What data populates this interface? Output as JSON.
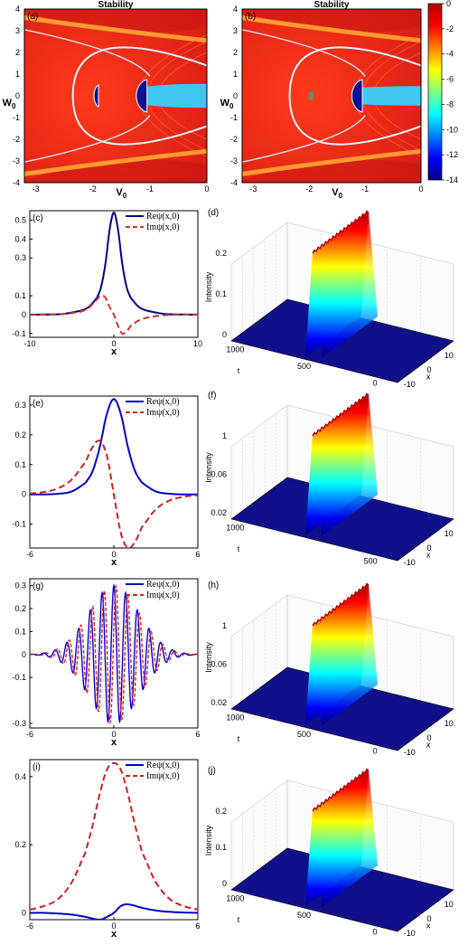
{
  "chart_data": [
    {
      "id": "a",
      "type": "heatmap",
      "panel_label": "(a)",
      "title": "Stability",
      "xlabel": "V0",
      "ylabel": "W0",
      "xlim": [
        -3.2,
        0
      ],
      "ylim": [
        -4,
        4
      ],
      "x_ticks": [
        "-3",
        "-2",
        "-1",
        "0"
      ],
      "y_ticks": [
        "4",
        "3",
        "2",
        "1",
        "0",
        "-1",
        "-2",
        "-3",
        "-4"
      ],
      "background_color": "#e0261c"
    },
    {
      "id": "b",
      "type": "heatmap",
      "panel_label": "(b)",
      "title": "Stability",
      "xlabel": "V0",
      "ylabel": "W0",
      "xlim": [
        -3.2,
        0
      ],
      "ylim": [
        -4,
        4
      ],
      "x_ticks": [
        "-3",
        "-2",
        "-1",
        "0"
      ],
      "y_ticks": [
        "4",
        "3",
        "2",
        "1",
        "0",
        "-1",
        "-2",
        "-3",
        "-4"
      ],
      "colorbar": {
        "range": [
          -14,
          0
        ],
        "ticks": [
          "0",
          "-2",
          "-4",
          "-6",
          "-8",
          "-10",
          "-12",
          "-14"
        ],
        "colors": [
          "#8b0000",
          "#ff2a00",
          "#ff8c00",
          "#ffff00",
          "#7fff7f",
          "#00ffff",
          "#0080ff",
          "#0000bf",
          "#00007f"
        ]
      },
      "background_color": "#e0261c"
    },
    {
      "id": "c",
      "type": "line",
      "panel_label": "(c)",
      "xlabel": "x",
      "xlim": [
        -10,
        10
      ],
      "ylim": [
        -0.12,
        0.55
      ],
      "x_ticks": [
        "-10",
        "0",
        "10"
      ],
      "y_ticks": [
        "0.5",
        "0.4",
        "0.3",
        "0.1",
        "0",
        "-0.1"
      ],
      "series": [
        {
          "name": "Reψ(x,0)",
          "color": "#00008b",
          "style": "solid",
          "x": [
            -10,
            -8,
            -6,
            -4,
            -3,
            -2,
            -1.5,
            -1,
            -0.5,
            0,
            0.5,
            1,
            1.5,
            2,
            3,
            4,
            6,
            8,
            10
          ],
          "values": [
            0,
            0.001,
            0.004,
            0.02,
            0.04,
            0.09,
            0.15,
            0.27,
            0.45,
            0.54,
            0.45,
            0.27,
            0.15,
            0.09,
            0.04,
            0.02,
            0.004,
            0.001,
            0
          ]
        },
        {
          "name": "Imψ(x,0)",
          "color": "#c0392b",
          "style": "dashed",
          "x": [
            -10,
            -8,
            -6,
            -4,
            -3,
            -2,
            -1.5,
            -1,
            -0.5,
            0,
            0.5,
            1,
            1.5,
            2,
            3,
            4,
            6,
            8,
            10
          ],
          "values": [
            0,
            0,
            0.003,
            0.015,
            0.035,
            0.08,
            0.1,
            0.09,
            0.04,
            0,
            -0.06,
            -0.1,
            -0.09,
            -0.06,
            -0.03,
            -0.015,
            -0.003,
            0,
            0
          ]
        }
      ]
    },
    {
      "id": "d",
      "type": "surface",
      "panel_label": "(d)",
      "xlabel": "x",
      "ylabel": "t",
      "zlabel": "Intensity",
      "x_ticks": [
        "-10",
        "0",
        "10"
      ],
      "t_ticks": [
        "0",
        "500",
        "1000"
      ],
      "z_ticks": [
        "0",
        "0.1",
        "0.2"
      ]
    },
    {
      "id": "e",
      "type": "line",
      "panel_label": "(e)",
      "xlabel": "x",
      "xlim": [
        -6,
        6
      ],
      "ylim": [
        -0.18,
        0.33
      ],
      "x_ticks": [
        "-6",
        "0",
        "6"
      ],
      "y_ticks": [
        "0.3",
        "0.2",
        "0.1",
        "0",
        "-0.1"
      ],
      "series": [
        {
          "name": "Reψ(x,0)",
          "color": "#0000cc",
          "style": "solid",
          "x": [
            -6,
            -5,
            -4,
            -3,
            -2,
            -1.5,
            -1,
            -0.5,
            0,
            0.5,
            1,
            1.5,
            2,
            3,
            4,
            5,
            6
          ],
          "values": [
            0,
            0,
            0.002,
            0.01,
            0.04,
            0.08,
            0.16,
            0.27,
            0.32,
            0.27,
            0.16,
            0.08,
            0.04,
            0.01,
            0.002,
            0,
            0
          ]
        },
        {
          "name": "Imψ(x,0)",
          "color": "#cc2222",
          "style": "dashed",
          "x": [
            -6,
            -5,
            -4,
            -3,
            -2,
            -1.5,
            -1,
            -0.5,
            0,
            0.5,
            1,
            1.5,
            2,
            3,
            4,
            5,
            6
          ],
          "values": [
            0.003,
            0.008,
            0.02,
            0.05,
            0.11,
            0.16,
            0.18,
            0.13,
            0,
            -0.13,
            -0.18,
            -0.16,
            -0.11,
            -0.05,
            -0.02,
            -0.008,
            -0.003
          ]
        }
      ]
    },
    {
      "id": "f",
      "type": "surface",
      "panel_label": "(f)",
      "xlabel": "x",
      "ylabel": "t",
      "zlabel": "Intensity",
      "x_ticks": [
        "-10",
        "0",
        "10"
      ],
      "t_ticks": [
        "500",
        "1000"
      ],
      "z_ticks": [
        "0.02",
        "0.06",
        "1"
      ]
    },
    {
      "id": "g",
      "type": "line",
      "panel_label": "(g)",
      "xlabel": "x",
      "xlim": [
        -6,
        6
      ],
      "ylim": [
        -0.32,
        0.33
      ],
      "x_ticks": [
        "-6",
        "0",
        "6"
      ],
      "y_ticks": [
        "0.3",
        "0.2",
        "0.1",
        "0",
        "-0.1",
        "-0.3"
      ],
      "oscillation": {
        "amplitude": 0.3,
        "envelope_width": 1.8,
        "wavenumber": 7.5
      },
      "series": [
        {
          "name": "Reψ(x,0)",
          "color": "#0000dd",
          "style": "solid"
        },
        {
          "name": "Imψ(x,0)",
          "color": "#dd2222",
          "style": "dashed"
        }
      ]
    },
    {
      "id": "h",
      "type": "surface",
      "panel_label": "(h)",
      "xlabel": "x",
      "ylabel": "t",
      "zlabel": "Intensity",
      "x_ticks": [
        "-10",
        "0",
        "10"
      ],
      "t_ticks": [
        "0",
        "500",
        "1000"
      ],
      "z_ticks": [
        "0.02",
        "0.06",
        "1"
      ]
    },
    {
      "id": "i",
      "type": "line",
      "panel_label": "(i)",
      "xlabel": "x",
      "xlim": [
        -6,
        6
      ],
      "ylim": [
        -0.02,
        0.45
      ],
      "x_ticks": [
        "-6",
        "0",
        "6"
      ],
      "y_ticks": [
        "0.4",
        "0.2",
        "0"
      ],
      "series": [
        {
          "name": "Reψ(x,0)",
          "color": "#0000cc",
          "style": "solid",
          "x": [
            -6,
            -5,
            -4,
            -3,
            -2,
            -1,
            -0.5,
            0,
            0.5,
            1,
            2,
            3,
            4,
            5,
            6
          ],
          "values": [
            0,
            0,
            -0.002,
            -0.005,
            -0.012,
            -0.02,
            -0.012,
            0,
            0.02,
            0.025,
            0.015,
            0.007,
            0.003,
            0.001,
            0
          ]
        },
        {
          "name": "Imψ(x,0)",
          "color": "#cc2222",
          "style": "dashed",
          "x": [
            -6,
            -5,
            -4,
            -3,
            -2,
            -1.5,
            -1,
            -0.5,
            0,
            0.5,
            1,
            1.5,
            2,
            3,
            4,
            5,
            6
          ],
          "values": [
            0.01,
            0.02,
            0.04,
            0.09,
            0.18,
            0.26,
            0.35,
            0.42,
            0.44,
            0.42,
            0.35,
            0.26,
            0.18,
            0.09,
            0.04,
            0.02,
            0.01
          ]
        }
      ]
    },
    {
      "id": "j",
      "type": "surface",
      "panel_label": "(j)",
      "xlabel": "x",
      "ylabel": "t",
      "zlabel": "Intensity",
      "x_ticks": [
        "-10",
        "0",
        "10"
      ],
      "t_ticks": [
        "0",
        "500",
        "1000"
      ],
      "z_ticks": [
        "0",
        "0.1",
        "0.2"
      ]
    }
  ]
}
